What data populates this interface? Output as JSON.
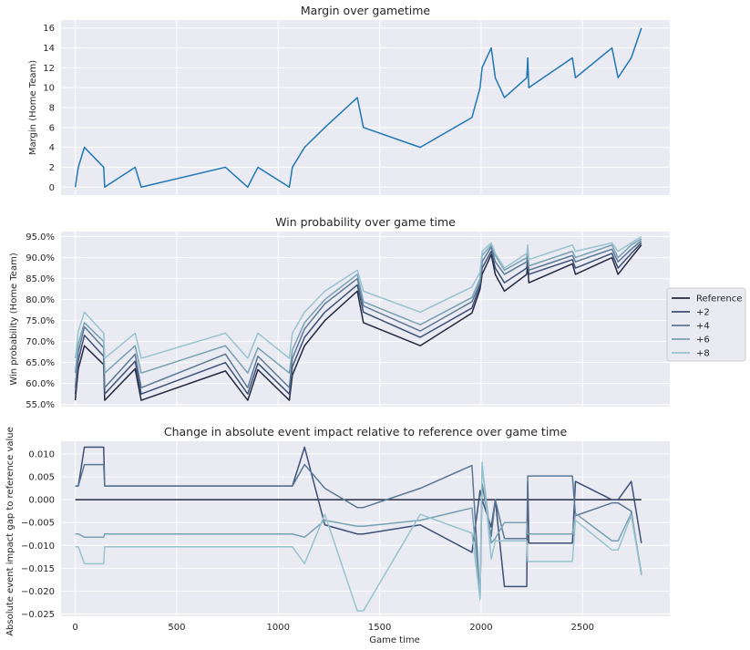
{
  "chart_data": [
    {
      "type": "line",
      "title": "Margin over gametime",
      "xlabel": "",
      "ylabel": "Margin (Home Team)",
      "xlim": [
        -70,
        2930
      ],
      "ylim": [
        -0.8,
        16.8
      ],
      "xticks": [
        0,
        500,
        1000,
        1500,
        2000,
        2500
      ],
      "xtick_labels": [
        "",
        "",
        "",
        "",
        "",
        ""
      ],
      "yticks": [
        0,
        2,
        4,
        6,
        8,
        10,
        12,
        14,
        16
      ],
      "ytick_labels": [
        "0",
        "2",
        "4",
        "6",
        "8",
        "10",
        "12",
        "14",
        "16"
      ],
      "grid": true,
      "series": [
        {
          "color": "#1f77b4",
          "x": [
            0,
            15,
            45,
            140,
            145,
            295,
            325,
            740,
            850,
            900,
            1055,
            1070,
            1130,
            1230,
            1390,
            1420,
            1700,
            1955,
            1995,
            2005,
            2050,
            2070,
            2115,
            2225,
            2230,
            2235,
            2450,
            2465,
            2645,
            2675,
            2740,
            2790
          ],
          "y": [
            0,
            2,
            4,
            2,
            0,
            2,
            0,
            2,
            0,
            2,
            0,
            2,
            4,
            6,
            9,
            6,
            4,
            7,
            10,
            12,
            14,
            11,
            9,
            11,
            13,
            10,
            13,
            11,
            14,
            11,
            13,
            16
          ]
        }
      ]
    },
    {
      "type": "line",
      "title": "Win probability over game time",
      "xlabel": "",
      "ylabel": "Win probability (Home Team)",
      "xlim": [
        -70,
        2930
      ],
      "ylim": [
        54.5,
        96.2
      ],
      "xticks": [
        0,
        500,
        1000,
        1500,
        2000,
        2500
      ],
      "xtick_labels": [
        "",
        "",
        "",
        "",
        "",
        ""
      ],
      "yticks": [
        55,
        60,
        65,
        70,
        75,
        80,
        85,
        90,
        95
      ],
      "ytick_labels": [
        "55.0%",
        "60.0%",
        "65.0%",
        "70.0%",
        "75.0%",
        "80.0%",
        "85.0%",
        "90.0%",
        "95.0%"
      ],
      "grid": true,
      "legend_position": "right",
      "x": [
        0,
        15,
        45,
        140,
        145,
        295,
        325,
        740,
        850,
        900,
        1055,
        1070,
        1130,
        1230,
        1390,
        1420,
        1700,
        1955,
        1995,
        2005,
        2050,
        2070,
        2115,
        2225,
        2230,
        2235,
        2450,
        2465,
        2645,
        2675,
        2740,
        2790
      ],
      "series": [
        {
          "name": "Reference",
          "color": "#22283f",
          "values": [
            56.0,
            63.5,
            69.0,
            64.5,
            56.0,
            63.5,
            56.0,
            63.0,
            56.0,
            63.3,
            56.0,
            62.0,
            69.0,
            75.0,
            82.0,
            74.5,
            69.0,
            76.8,
            82.5,
            86.0,
            90.7,
            86.0,
            82.0,
            86.0,
            88.5,
            84.0,
            88.5,
            86.0,
            90.0,
            86.0,
            90.0,
            93.0
          ]
        },
        {
          "name": "+2",
          "color": "#3d4f75",
          "values": [
            57.5,
            65.5,
            71.5,
            66.5,
            57.5,
            65.3,
            57.5,
            65.0,
            57.5,
            64.8,
            57.5,
            64.0,
            71.0,
            77.0,
            83.5,
            77.0,
            71.0,
            78.0,
            83.5,
            87.5,
            91.5,
            87.5,
            84.0,
            87.5,
            90.0,
            86.0,
            89.5,
            87.5,
            91.0,
            87.5,
            91.0,
            93.5
          ]
        },
        {
          "name": "+4",
          "color": "#5a7894",
          "values": [
            59.0,
            67.5,
            73.5,
            68.5,
            59.0,
            67.0,
            59.0,
            67.0,
            59.0,
            66.5,
            59.0,
            66.0,
            73.0,
            79.0,
            85.0,
            78.5,
            72.5,
            79.5,
            84.0,
            89.0,
            92.5,
            89.0,
            86.0,
            89.0,
            91.0,
            87.0,
            90.5,
            89.0,
            92.0,
            89.0,
            92.0,
            94.0
          ]
        },
        {
          "name": "+6",
          "color": "#77a0b3",
          "values": [
            62.5,
            69.5,
            74.5,
            70.0,
            62.5,
            69.0,
            62.5,
            69.0,
            62.5,
            68.5,
            62.5,
            68.0,
            74.5,
            80.0,
            86.0,
            79.5,
            74.0,
            80.5,
            85.0,
            90.5,
            93.0,
            90.5,
            87.0,
            90.0,
            92.0,
            88.0,
            91.5,
            90.0,
            93.0,
            90.0,
            93.0,
            94.5
          ]
        },
        {
          "name": "+8",
          "color": "#97c3cf",
          "values": [
            66.0,
            72.5,
            77.0,
            72.0,
            66.0,
            72.0,
            66.0,
            72.0,
            66.0,
            72.0,
            66.0,
            72.0,
            77.0,
            82.0,
            87.0,
            82.0,
            77.0,
            83.0,
            86.5,
            91.5,
            93.5,
            91.0,
            87.5,
            91.0,
            93.0,
            89.5,
            93.0,
            91.5,
            93.5,
            91.5,
            93.5,
            95.0
          ]
        }
      ]
    },
    {
      "type": "line",
      "title": "Change in absolute event impact relative to reference over game time",
      "xlabel": "Game time",
      "ylabel": "Absolute event impact gap to reference value",
      "xlim": [
        -70,
        2930
      ],
      "ylim": [
        -0.0255,
        0.0128
      ],
      "xticks": [
        0,
        500,
        1000,
        1500,
        2000,
        2500
      ],
      "xtick_labels": [
        "0",
        "500",
        "1000",
        "1500",
        "2000",
        "2500"
      ],
      "yticks": [
        -0.025,
        -0.02,
        -0.015,
        -0.01,
        -0.005,
        0.0,
        0.005,
        0.01
      ],
      "ytick_labels": [
        "−0.025",
        "−0.020",
        "−0.015",
        "−0.010",
        "−0.005",
        "0.000",
        "0.005",
        "0.010"
      ],
      "grid": true,
      "series": [
        {
          "name": "Reference",
          "color": "#22283f",
          "x": [
            0,
            2790
          ],
          "y": [
            0,
            0
          ]
        },
        {
          "name": "+2",
          "color": "#3d4f75",
          "x": [
            0,
            15,
            45,
            140,
            145,
            1055,
            1070,
            1130,
            1230,
            1390,
            1420,
            1700,
            1955,
            1995,
            2005,
            2050,
            2070,
            2115,
            2225,
            2230,
            2235,
            2450,
            2465,
            2645,
            2675,
            2740,
            2790
          ],
          "y": [
            0.003,
            0.003,
            0.0115,
            0.0115,
            0.003,
            0.003,
            0.003,
            0.0115,
            -0.0055,
            -0.0075,
            -0.0075,
            -0.0055,
            -0.0115,
            0.002,
            0.0,
            -0.006,
            0.0,
            -0.019,
            -0.019,
            0.004,
            -0.0095,
            -0.0095,
            0.004,
            0.0,
            0.0,
            0.004,
            -0.0095
          ]
        },
        {
          "name": "+4",
          "color": "#5a7894",
          "x": [
            0,
            15,
            45,
            140,
            145,
            1055,
            1070,
            1130,
            1230,
            1390,
            1420,
            1700,
            1955,
            1995,
            2005,
            2050,
            2070,
            2115,
            2225,
            2230,
            2235,
            2450,
            2465,
            2645,
            2675,
            2740,
            2790
          ],
          "y": [
            0.003,
            0.003,
            0.0077,
            0.0077,
            0.003,
            0.003,
            0.003,
            0.0077,
            0.0025,
            -0.0017,
            -0.0017,
            0.0025,
            0.0075,
            -0.0218,
            0.0035,
            -0.008,
            0.0,
            -0.0085,
            -0.0085,
            0.0052,
            0.0052,
            0.0052,
            -0.0035,
            -0.0007,
            -0.0007,
            -0.0025,
            -0.0165
          ]
        },
        {
          "name": "+6",
          "color": "#77a0b3",
          "x": [
            0,
            15,
            45,
            140,
            145,
            1055,
            1070,
            1130,
            1230,
            1390,
            1420,
            1700,
            1955,
            1995,
            2005,
            2050,
            2070,
            2115,
            2225,
            2230,
            2235,
            2450,
            2465,
            2645,
            2675,
            2740,
            2790
          ],
          "y": [
            -0.0075,
            -0.0075,
            -0.0082,
            -0.0082,
            -0.0075,
            -0.0075,
            -0.0075,
            -0.0082,
            -0.0045,
            -0.0058,
            -0.0058,
            -0.0045,
            -0.0018,
            -0.021,
            0.0075,
            -0.0095,
            -0.0085,
            -0.005,
            -0.005,
            -0.0075,
            -0.0075,
            -0.0075,
            -0.003,
            -0.009,
            -0.009,
            -0.003,
            -0.016
          ]
        },
        {
          "name": "+8",
          "color": "#97c3cf",
          "x": [
            0,
            15,
            45,
            140,
            145,
            1055,
            1070,
            1130,
            1230,
            1390,
            1420,
            1700,
            1955,
            1995,
            2005,
            2050,
            2070,
            2115,
            2225,
            2230,
            2235,
            2450,
            2465,
            2645,
            2675,
            2740,
            2790
          ],
          "y": [
            -0.0103,
            -0.0103,
            -0.014,
            -0.014,
            -0.0103,
            -0.0103,
            -0.0103,
            -0.014,
            -0.0032,
            -0.0243,
            -0.0243,
            -0.0032,
            -0.0073,
            -0.0218,
            0.0082,
            -0.013,
            -0.009,
            -0.009,
            -0.009,
            -0.0135,
            -0.0135,
            -0.0135,
            -0.0045,
            -0.011,
            -0.011,
            -0.0035,
            -0.0165
          ]
        }
      ]
    }
  ],
  "legend": {
    "items": [
      {
        "label": "Reference",
        "color": "#22283f"
      },
      {
        "label": "+2",
        "color": "#3d4f75"
      },
      {
        "label": "+4",
        "color": "#5a7894"
      },
      {
        "label": "+6",
        "color": "#77a0b3"
      },
      {
        "label": "+8",
        "color": "#97c3cf"
      }
    ]
  }
}
